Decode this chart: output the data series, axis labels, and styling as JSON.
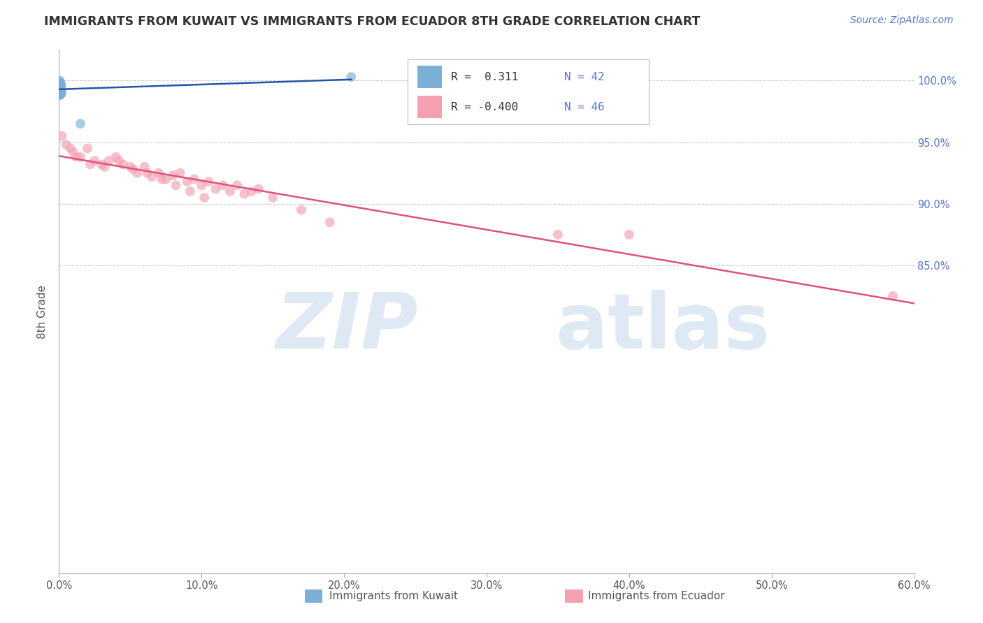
{
  "title": "IMMIGRANTS FROM KUWAIT VS IMMIGRANTS FROM ECUADOR 8TH GRADE CORRELATION CHART",
  "source": "Source: ZipAtlas.com",
  "ylabel": "8th Grade",
  "x_label_kuwait": "Immigrants from Kuwait",
  "x_label_ecuador": "Immigrants from Ecuador",
  "xlim": [
    0.0,
    60.0
  ],
  "ylim": [
    60.0,
    102.5
  ],
  "x_ticks": [
    0.0,
    10.0,
    20.0,
    30.0,
    40.0,
    50.0,
    60.0
  ],
  "y_ticks": [
    85.0,
    90.0,
    95.0,
    100.0
  ],
  "color_kuwait": "#7BAFD4",
  "color_ecuador": "#F4A0B0",
  "color_trendline_kuwait": "#2255AA",
  "color_trendline_ecuador": "#E05080",
  "watermark_zip": "ZIP",
  "watermark_atlas": "atlas",
  "kuwait_x": [
    0.05,
    0.1,
    0.15,
    0.05,
    0.08,
    0.12,
    0.18,
    0.06,
    0.1,
    0.14,
    0.05,
    0.09,
    0.07,
    0.11,
    0.16,
    0.05,
    0.08,
    0.13,
    0.06,
    0.1,
    0.05,
    0.07,
    0.12,
    0.09,
    0.06,
    0.11,
    0.08,
    0.15,
    0.05,
    0.1,
    0.07,
    0.13,
    0.05,
    0.09,
    0.06,
    0.12,
    0.08,
    0.11,
    0.05,
    0.14,
    1.5,
    20.5
  ],
  "kuwait_y": [
    99.8,
    99.5,
    99.2,
    98.9,
    99.6,
    99.3,
    99.0,
    99.7,
    99.4,
    99.1,
    100.0,
    99.8,
    99.6,
    99.3,
    99.0,
    99.5,
    99.2,
    98.9,
    99.7,
    99.4,
    98.8,
    99.6,
    99.3,
    99.0,
    99.5,
    99.2,
    98.9,
    99.7,
    99.4,
    99.1,
    99.6,
    99.3,
    99.9,
    99.5,
    99.2,
    98.9,
    99.7,
    99.4,
    99.1,
    99.6,
    96.5,
    100.3
  ],
  "ecuador_x": [
    0.2,
    0.5,
    1.0,
    1.5,
    2.0,
    2.5,
    3.0,
    3.5,
    4.0,
    4.5,
    5.0,
    5.5,
    6.0,
    6.5,
    7.0,
    7.5,
    8.0,
    8.5,
    9.0,
    9.5,
    10.0,
    10.5,
    11.0,
    11.5,
    12.0,
    12.5,
    13.0,
    13.5,
    14.0,
    1.2,
    2.2,
    3.2,
    4.2,
    5.2,
    6.2,
    7.2,
    8.2,
    9.2,
    10.2,
    15.0,
    17.0,
    19.0,
    35.0,
    40.0,
    58.5,
    0.8
  ],
  "ecuador_y": [
    95.5,
    94.8,
    94.2,
    93.8,
    94.5,
    93.5,
    93.2,
    93.5,
    93.8,
    93.2,
    93.0,
    92.5,
    93.0,
    92.2,
    92.5,
    92.0,
    92.3,
    92.5,
    91.8,
    92.0,
    91.5,
    91.8,
    91.2,
    91.5,
    91.0,
    91.5,
    90.8,
    91.0,
    91.2,
    93.8,
    93.2,
    93.0,
    93.5,
    92.8,
    92.5,
    92.0,
    91.5,
    91.0,
    90.5,
    90.5,
    89.5,
    88.5,
    87.5,
    87.5,
    82.5,
    94.5
  ]
}
